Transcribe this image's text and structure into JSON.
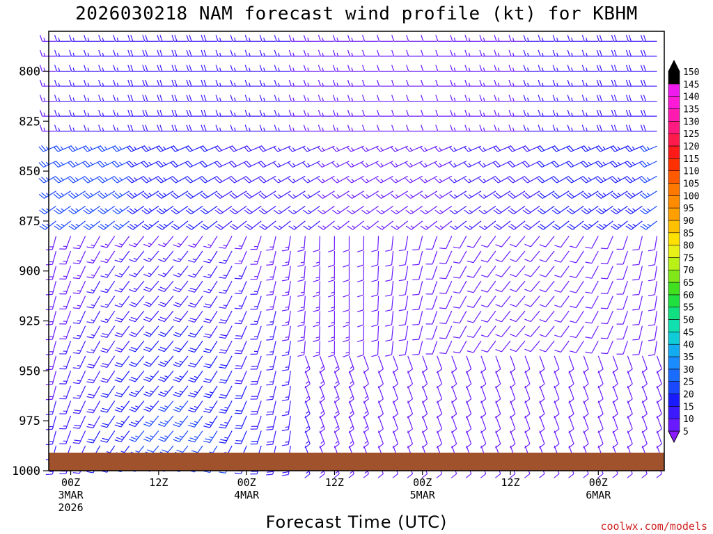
{
  "chart_data": {
    "type": "wind_barb_time_height",
    "title": "2026030218 NAM forecast wind profile (kt) for KBHM",
    "xlabel": "Forecast Time (UTC)",
    "ylabel": "",
    "y_axis": {
      "ticks": [
        "800",
        "825",
        "850",
        "875",
        "900",
        "925",
        "950",
        "975",
        "1000"
      ],
      "ylim": [
        780,
        1000
      ],
      "inverted": true
    },
    "x_axis": {
      "ticks": [
        {
          "label": "00Z",
          "sub": [
            "3MAR",
            "2026"
          ]
        },
        {
          "label": "12Z",
          "sub": []
        },
        {
          "label": "00Z",
          "sub": [
            "4MAR"
          ]
        },
        {
          "label": "12Z",
          "sub": []
        },
        {
          "label": "00Z",
          "sub": [
            "5MAR"
          ]
        },
        {
          "label": "12Z",
          "sub": []
        },
        {
          "label": "00Z",
          "sub": [
            "6MAR"
          ]
        }
      ],
      "start_forecast_hour": -3,
      "end_forecast_hour": 81,
      "step_hours": 1
    },
    "colorbar": {
      "levels": [
        "5",
        "10",
        "15",
        "20",
        "25",
        "30",
        "35",
        "40",
        "45",
        "50",
        "55",
        "60",
        "65",
        "70",
        "75",
        "80",
        "85",
        "90",
        "95",
        "100",
        "105",
        "110",
        "115",
        "120",
        "125",
        "130",
        "135",
        "140",
        "145",
        "150"
      ],
      "colors": [
        "#8c1aff",
        "#6a1aff",
        "#3c1aff",
        "#1a1aff",
        "#1a48ff",
        "#1a6cff",
        "#1a8cff",
        "#14acf0",
        "#10ccd8",
        "#10e0b0",
        "#10e080",
        "#20e040",
        "#40e020",
        "#80e818",
        "#b8f018",
        "#e8f018",
        "#ffe000",
        "#ffc000",
        "#ffa000",
        "#ff8c00",
        "#ff7800",
        "#ff5a00",
        "#ff3000",
        "#ff1a1a",
        "#ff1a4c",
        "#ff1a80",
        "#ff1ab0",
        "#ff1ad8",
        "#ee1aee",
        "#000000"
      ]
    },
    "terrain_color": "#a0522d",
    "grid": false
  },
  "credit": "coolwx.com/models"
}
